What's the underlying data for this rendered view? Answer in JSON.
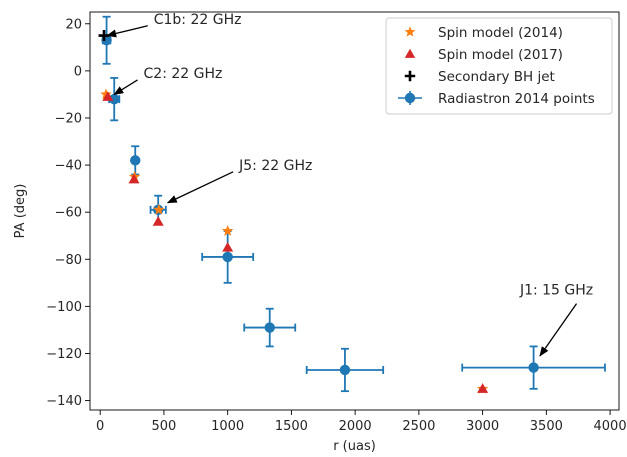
{
  "chart_data": {
    "type": "scatter",
    "xlabel": "r (uas)",
    "ylabel": "PA (deg)",
    "xlim": [
      -80,
      4070
    ],
    "ylim": [
      -144,
      25
    ],
    "xticks": [
      0,
      500,
      1000,
      1500,
      2000,
      2500,
      3000,
      3500,
      4000
    ],
    "yticks": [
      20,
      0,
      -20,
      -40,
      -60,
      -80,
      -100,
      -120,
      -140
    ],
    "grid": false,
    "legend_position": "top-right",
    "colors": {
      "radiastron": "#1f77b4",
      "spin2014": "#ff7f0e",
      "spin2017": "#d62728",
      "secondary": "#000000"
    },
    "series": [
      {
        "name": "Spin model (2014)",
        "marker": "star",
        "color": "#ff7f0e",
        "points": [
          {
            "x": 45,
            "y": -10
          },
          {
            "x": 270,
            "y": -45
          },
          {
            "x": 460,
            "y": -59
          },
          {
            "x": 1000,
            "y": -68
          },
          {
            "x": 3000,
            "y": -135
          }
        ]
      },
      {
        "name": "Spin model (2017)",
        "marker": "triangle",
        "color": "#d62728",
        "points": [
          {
            "x": 60,
            "y": -11
          },
          {
            "x": 265,
            "y": -46
          },
          {
            "x": 455,
            "y": -64
          },
          {
            "x": 1000,
            "y": -75
          },
          {
            "x": 3000,
            "y": -135
          }
        ]
      },
      {
        "name": "Secondary BH jet",
        "marker": "plus",
        "color": "#000000",
        "points": [
          {
            "x": 30,
            "y": 15
          }
        ]
      },
      {
        "name": "Radiastron 2014 points",
        "marker": "circle-errorbar",
        "color": "#1f77b4",
        "points": [
          {
            "x": 50,
            "y": 13,
            "xerr": 30,
            "yerr": 10
          },
          {
            "x": 110,
            "y": -12,
            "xerr": 40,
            "yerr": 9
          },
          {
            "x": 275,
            "y": -38,
            "xerr": 0,
            "yerr": 6
          },
          {
            "x": 455,
            "y": -59,
            "xerr": 60,
            "yerr": 6
          },
          {
            "x": 1000,
            "y": -79,
            "xerr": 200,
            "yerr": 11
          },
          {
            "x": 1330,
            "y": -109,
            "xerr": 200,
            "yerr": 8
          },
          {
            "x": 1920,
            "y": -127,
            "xerr": 300,
            "yerr": 9
          },
          {
            "x": 3400,
            "y": -126,
            "xerr": 560,
            "yerr": 9
          }
        ]
      }
    ],
    "annotations": [
      {
        "text": "C1b: 22 GHz",
        "point": [
          55,
          15
        ],
        "text_pos": [
          420,
          20
        ],
        "text_anchor": "start"
      },
      {
        "text": "C2: 22 GHz",
        "point": [
          110,
          -10
        ],
        "text_pos": [
          340,
          -3
        ],
        "text_anchor": "start"
      },
      {
        "text": "J5: 22 GHz",
        "point": [
          530,
          -56
        ],
        "text_pos": [
          1090,
          -42
        ],
        "text_anchor": "start"
      },
      {
        "text": "J1: 15 GHz",
        "point": [
          3450,
          -121
        ],
        "text_pos": [
          3580,
          -95
        ],
        "text_anchor": "middle"
      }
    ]
  }
}
